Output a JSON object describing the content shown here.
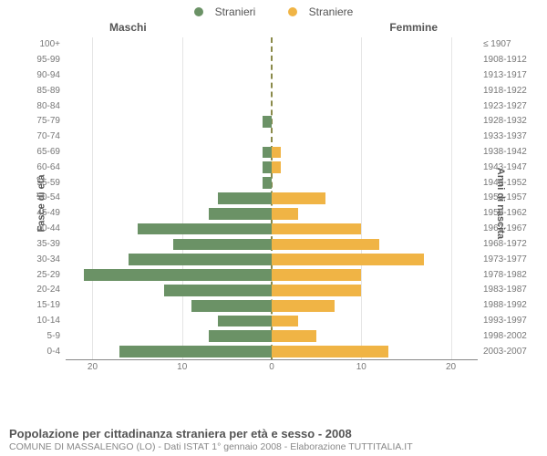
{
  "legend": {
    "male": {
      "label": "Stranieri",
      "color": "#6b9266"
    },
    "female": {
      "label": "Straniere",
      "color": "#f0b445"
    }
  },
  "column_titles": {
    "left": "Maschi",
    "right": "Femmine"
  },
  "y_axis_titles": {
    "left": "Fasce di età",
    "right": "Anni di nascita"
  },
  "x_axis": {
    "max": 23,
    "ticks": [
      20,
      10,
      0,
      10,
      20
    ]
  },
  "style": {
    "bar_left_color": "#6b9266",
    "bar_right_color": "#f0b445",
    "grid_color": "#e5e5e5",
    "center_line_color": "#8a8a4a",
    "background": "#ffffff",
    "label_fontsize": 10,
    "title_fontsize": 13
  },
  "rows": [
    {
      "age": "100+",
      "birth": "≤ 1907",
      "m": 0,
      "f": 0
    },
    {
      "age": "95-99",
      "birth": "1908-1912",
      "m": 0,
      "f": 0
    },
    {
      "age": "90-94",
      "birth": "1913-1917",
      "m": 0,
      "f": 0
    },
    {
      "age": "85-89",
      "birth": "1918-1922",
      "m": 0,
      "f": 0
    },
    {
      "age": "80-84",
      "birth": "1923-1927",
      "m": 0,
      "f": 0
    },
    {
      "age": "75-79",
      "birth": "1928-1932",
      "m": 1,
      "f": 0
    },
    {
      "age": "70-74",
      "birth": "1933-1937",
      "m": 0,
      "f": 0
    },
    {
      "age": "65-69",
      "birth": "1938-1942",
      "m": 1,
      "f": 1
    },
    {
      "age": "60-64",
      "birth": "1943-1947",
      "m": 1,
      "f": 1
    },
    {
      "age": "55-59",
      "birth": "1948-1952",
      "m": 1,
      "f": 0
    },
    {
      "age": "50-54",
      "birth": "1953-1957",
      "m": 6,
      "f": 6
    },
    {
      "age": "45-49",
      "birth": "1958-1962",
      "m": 7,
      "f": 3
    },
    {
      "age": "40-44",
      "birth": "1963-1967",
      "m": 15,
      "f": 10
    },
    {
      "age": "35-39",
      "birth": "1968-1972",
      "m": 11,
      "f": 12
    },
    {
      "age": "30-34",
      "birth": "1973-1977",
      "m": 16,
      "f": 17
    },
    {
      "age": "25-29",
      "birth": "1978-1982",
      "m": 21,
      "f": 10
    },
    {
      "age": "20-24",
      "birth": "1983-1987",
      "m": 12,
      "f": 10
    },
    {
      "age": "15-19",
      "birth": "1988-1992",
      "m": 9,
      "f": 7
    },
    {
      "age": "10-14",
      "birth": "1993-1997",
      "m": 6,
      "f": 3
    },
    {
      "age": "5-9",
      "birth": "1998-2002",
      "m": 7,
      "f": 5
    },
    {
      "age": "0-4",
      "birth": "2003-2007",
      "m": 17,
      "f": 13
    }
  ],
  "footer": {
    "main": "Popolazione per cittadinanza straniera per età e sesso - 2008",
    "sub": "COMUNE DI MASSALENGO (LO) - Dati ISTAT 1° gennaio 2008 - Elaborazione TUTTITALIA.IT"
  }
}
